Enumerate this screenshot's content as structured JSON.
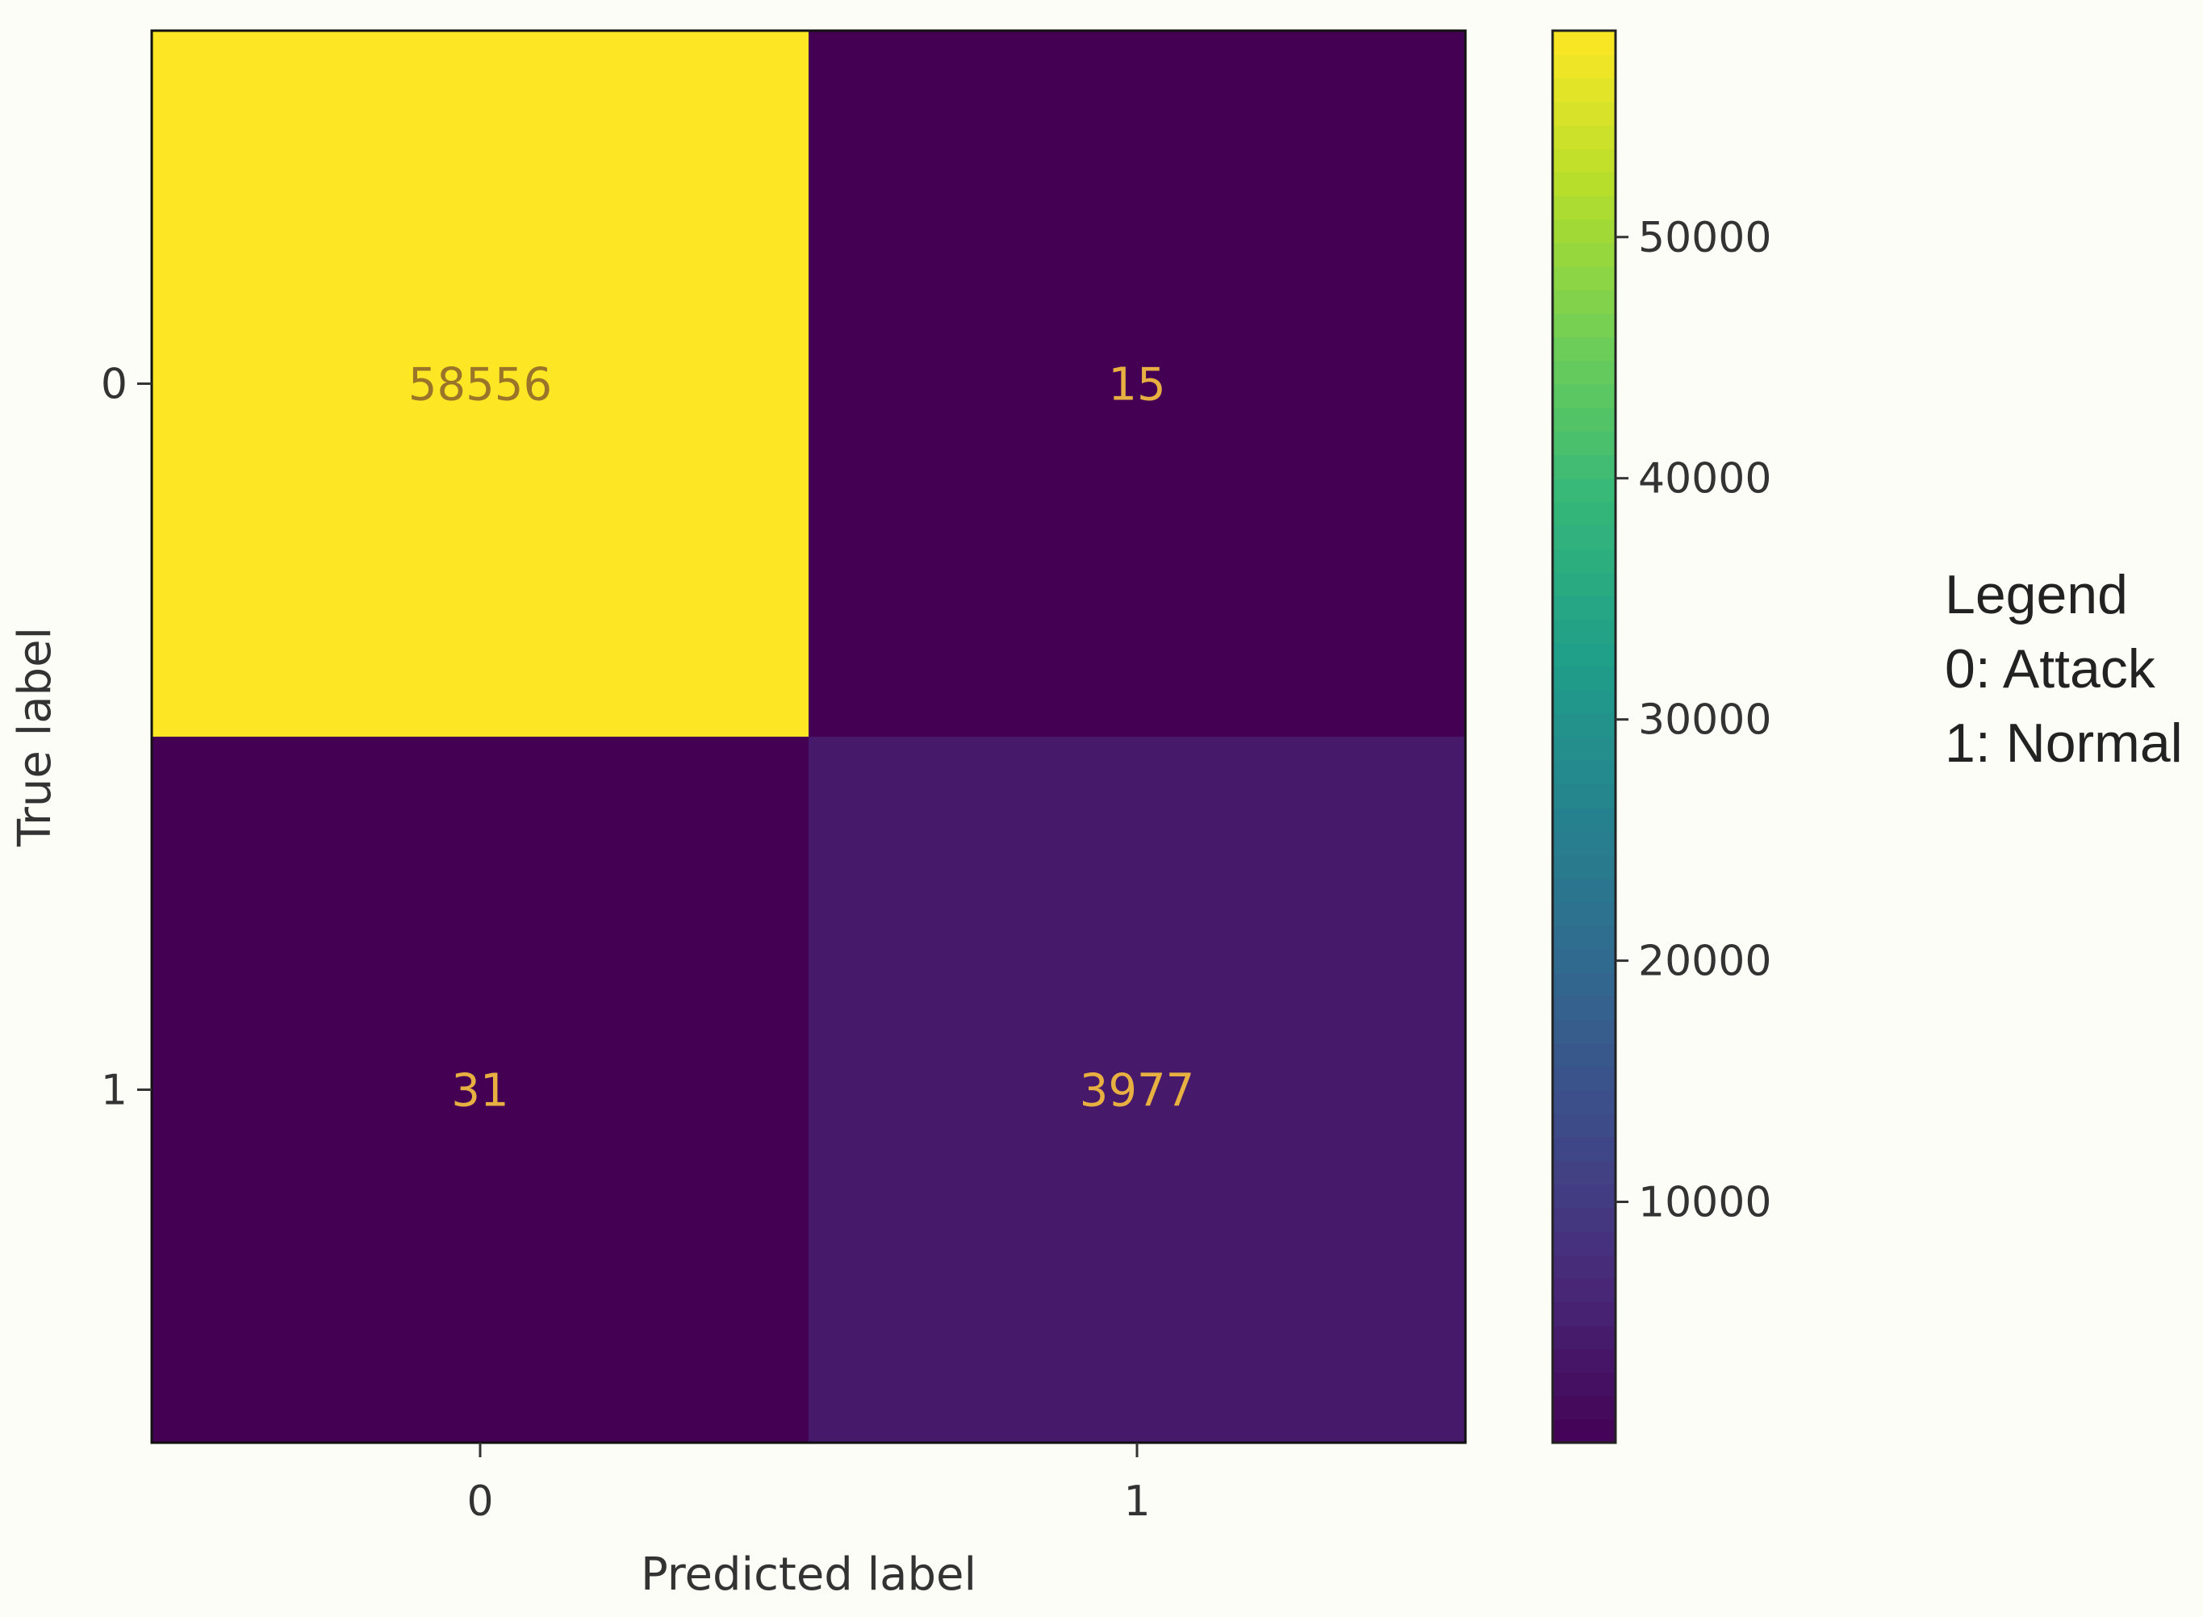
{
  "chart_data": {
    "type": "heatmap",
    "title": "",
    "xlabel": "Predicted label",
    "ylabel": "True label",
    "x_categories": [
      "0",
      "1"
    ],
    "y_categories": [
      "0",
      "1"
    ],
    "values": [
      [
        58556,
        15
      ],
      [
        31,
        3977
      ]
    ],
    "colormap": "viridis",
    "colorbar": {
      "range": [
        15,
        58556
      ],
      "ticks": [
        10000,
        20000,
        30000,
        40000,
        50000
      ]
    },
    "legend": {
      "title": "Legend",
      "entries": [
        "0: Attack",
        "1: Normal"
      ],
      "position": "right"
    }
  }
}
